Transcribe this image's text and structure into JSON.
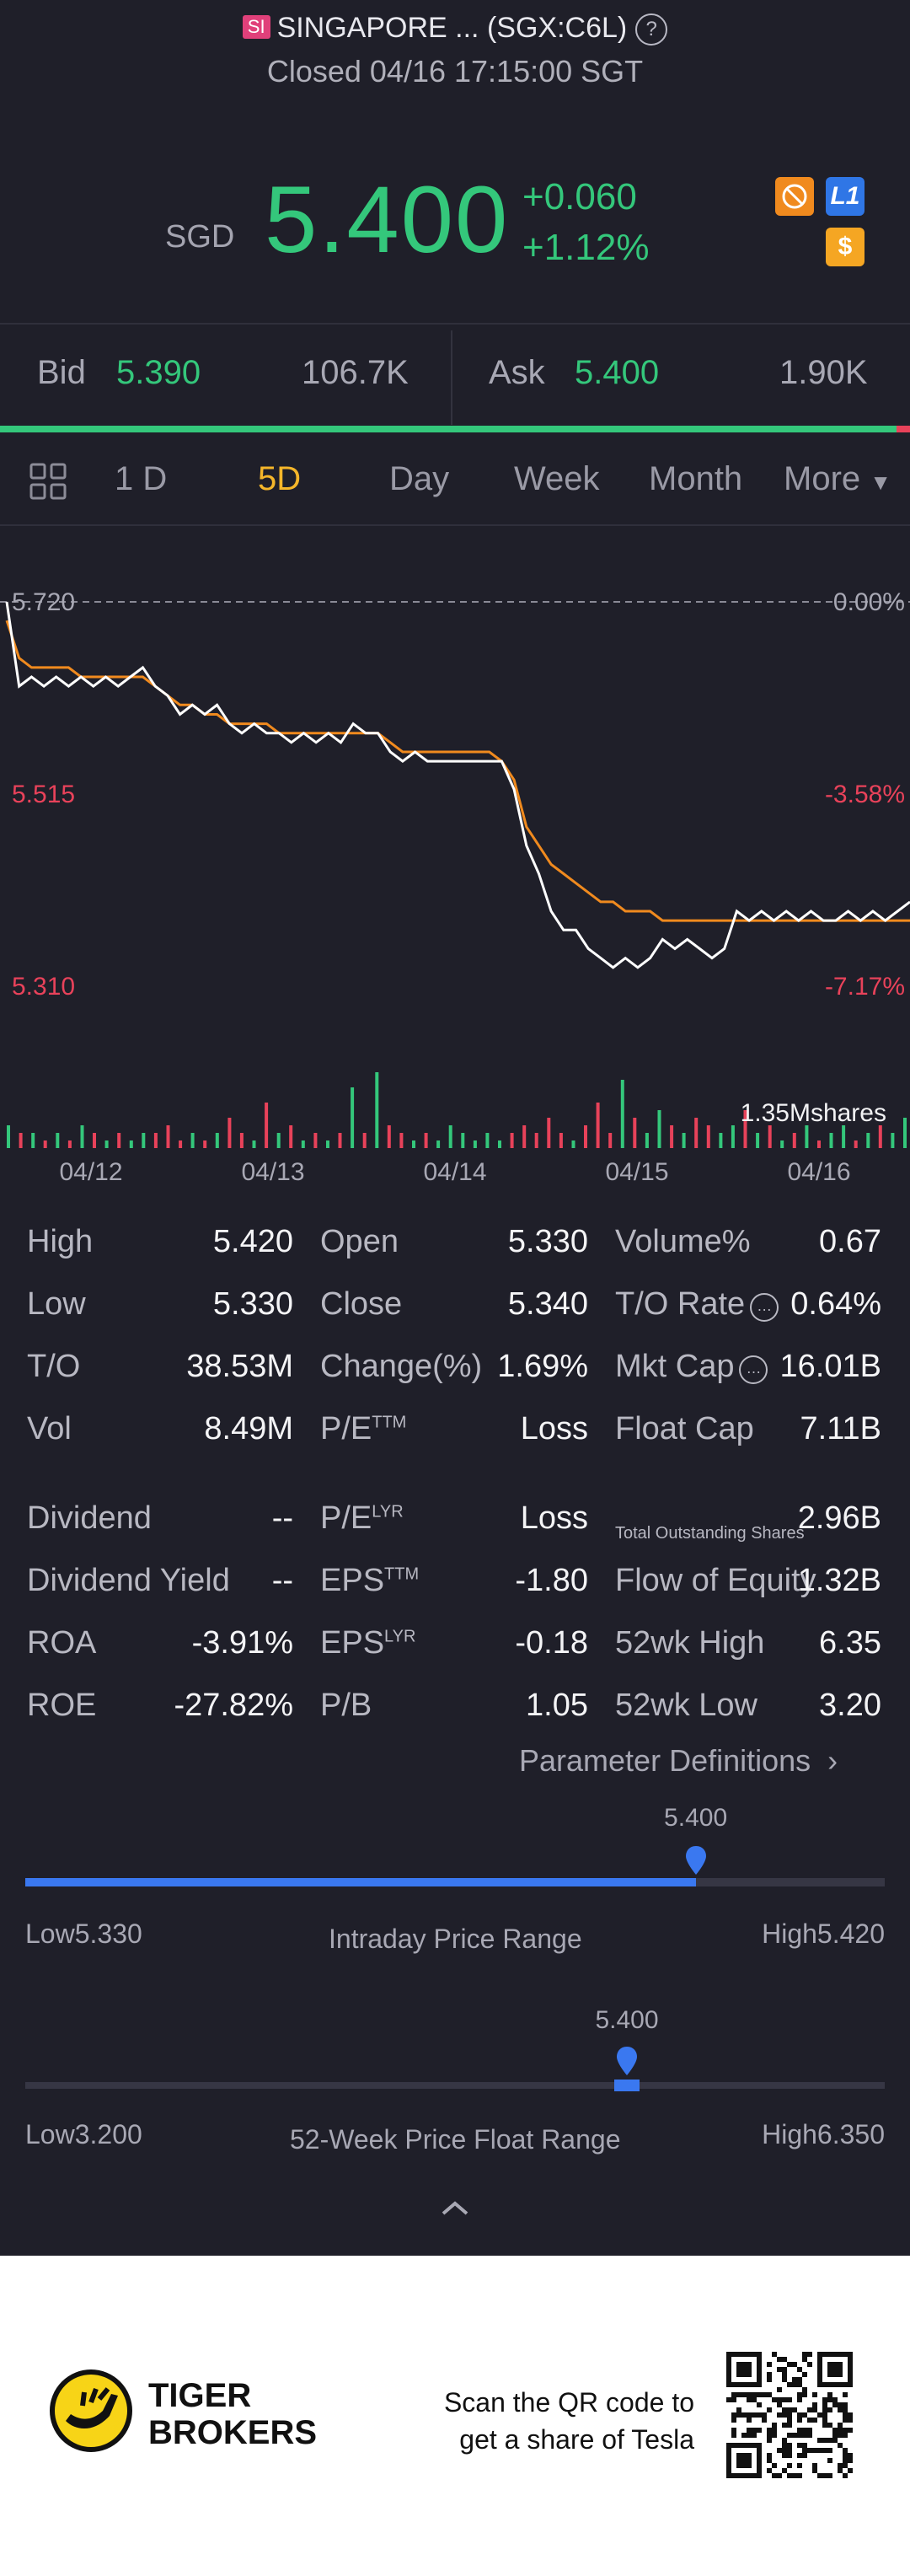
{
  "header": {
    "exchange_badge": "SI",
    "name": "SINGAPORE ... (SGX:C6L)",
    "help": "?",
    "status": "Closed 04/16 17:15:00 SGT"
  },
  "quote": {
    "currency": "SGD",
    "price": "5.400",
    "change": "+0.060",
    "change_pct": "+1.12%",
    "level_badge": "L1",
    "dollar_badge": "$"
  },
  "bidask": {
    "bid_label": "Bid",
    "bid_price": "5.390",
    "bid_size": "106.7K",
    "ask_label": "Ask",
    "ask_price": "5.400",
    "ask_size": "1.90K",
    "bid_fraction": 0.985
  },
  "tabs": {
    "items": [
      "1 D",
      "5D",
      "Day",
      "Week",
      "Month",
      "More"
    ],
    "active": "5D"
  },
  "chart_data": {
    "type": "line",
    "y_left_ticks": [
      "5.720",
      "5.515",
      "5.310"
    ],
    "y_right_ticks": [
      "0.00%",
      "-3.58%",
      "-7.17%"
    ],
    "x_ticks": [
      "04/12",
      "04/13",
      "04/14",
      "04/15",
      "04/16"
    ],
    "ylim": [
      5.31,
      5.72
    ],
    "volume_label": "1.35Mshares",
    "series": [
      {
        "values": [
          5.72,
          5.63,
          5.64,
          5.63,
          5.64,
          5.63,
          5.64,
          5.63,
          5.64,
          5.63,
          5.64,
          5.65,
          5.63,
          5.62,
          5.6,
          5.61,
          5.6,
          5.61,
          5.59,
          5.58,
          5.59,
          5.58,
          5.58,
          5.57,
          5.58,
          5.57,
          5.58,
          5.57,
          5.59,
          5.58,
          5.58,
          5.56,
          5.55,
          5.56,
          5.55,
          5.55,
          5.55,
          5.55,
          5.55,
          5.55,
          5.55,
          5.52,
          5.46,
          5.43,
          5.39,
          5.37,
          5.37,
          5.35,
          5.34,
          5.33,
          5.34,
          5.33,
          5.34,
          5.36,
          5.35,
          5.36,
          5.35,
          5.34,
          5.35,
          5.39,
          5.38,
          5.39,
          5.38,
          5.39,
          5.38,
          5.39,
          5.38,
          5.38,
          5.39,
          5.38,
          5.39,
          5.38,
          5.39,
          5.4
        ]
      },
      {
        "values": [
          5.7,
          5.66,
          5.65,
          5.65,
          5.65,
          5.65,
          5.64,
          5.64,
          5.64,
          5.64,
          5.64,
          5.64,
          5.63,
          5.62,
          5.61,
          5.61,
          5.6,
          5.6,
          5.59,
          5.59,
          5.59,
          5.59,
          5.58,
          5.58,
          5.58,
          5.58,
          5.58,
          5.58,
          5.58,
          5.58,
          5.58,
          5.57,
          5.56,
          5.56,
          5.56,
          5.56,
          5.56,
          5.56,
          5.56,
          5.56,
          5.55,
          5.53,
          5.48,
          5.46,
          5.44,
          5.43,
          5.42,
          5.41,
          5.4,
          5.4,
          5.39,
          5.39,
          5.39,
          5.38,
          5.38,
          5.38,
          5.38,
          5.38,
          5.38,
          5.38,
          5.38,
          5.38,
          5.38,
          5.38,
          5.38,
          5.38,
          5.38,
          5.38,
          5.38,
          5.38,
          5.38,
          5.38,
          5.38,
          5.38
        ]
      }
    ],
    "volume": [
      3,
      2,
      2,
      1,
      2,
      1,
      3,
      2,
      1,
      2,
      1,
      2,
      2,
      3,
      1,
      2,
      1,
      2,
      4,
      2,
      1,
      6,
      2,
      3,
      1,
      2,
      1,
      2,
      8,
      2,
      10,
      3,
      2,
      1,
      2,
      1,
      3,
      2,
      1,
      2,
      1,
      2,
      3,
      2,
      4,
      2,
      1,
      3,
      6,
      2,
      9,
      4,
      2,
      5,
      3,
      2,
      4,
      3,
      2,
      3,
      5,
      2,
      3,
      1,
      2,
      3,
      1,
      2,
      3,
      1,
      2,
      3,
      2,
      4
    ],
    "colors": {
      "price": "#ffffff",
      "avg": "#f08a1e",
      "up": "#34c77b",
      "down": "#e8425a"
    }
  },
  "stats": {
    "col1": [
      {
        "label": "High",
        "value": "5.420"
      },
      {
        "label": "Low",
        "value": "5.330"
      },
      {
        "label": "T/O",
        "value": "38.53M"
      },
      {
        "label": "Vol",
        "value": "8.49M"
      },
      {
        "label": "Dividend",
        "value": "--"
      },
      {
        "label": "Dividend Yield",
        "value": "--"
      },
      {
        "label": "ROA",
        "value": "-3.91%"
      },
      {
        "label": "ROE",
        "value": "-27.82%"
      }
    ],
    "col2": [
      {
        "label": "Open",
        "value": "5.330"
      },
      {
        "label": "Close",
        "value": "5.340"
      },
      {
        "label": "Change(%)",
        "value": "1.69%"
      },
      {
        "label": "P/E",
        "sup": "TTM",
        "value": "Loss"
      },
      {
        "label": "P/E",
        "sup": "LYR",
        "value": "Loss"
      },
      {
        "label": "EPS",
        "sup": "TTM",
        "value": "-1.80"
      },
      {
        "label": "EPS",
        "sup": "LYR",
        "value": "-0.18"
      },
      {
        "label": "P/B",
        "value": "1.05"
      }
    ],
    "col3": [
      {
        "label": "Volume%",
        "value": "0.67"
      },
      {
        "label": "T/O Rate",
        "value": "0.64%"
      },
      {
        "label": "Mkt Cap",
        "value": "16.01B"
      },
      {
        "label": "Float Cap",
        "value": "7.11B"
      },
      {
        "label": "Total Outstanding Shares",
        "value": "2.96B"
      },
      {
        "label": "Flow of Equity",
        "value": "1.32B"
      },
      {
        "label": "52wk High",
        "value": "6.35"
      },
      {
        "label": "52wk Low",
        "value": "3.20"
      }
    ],
    "param_link": "Parameter Definitions"
  },
  "ranges": {
    "intraday": {
      "current": "5.400",
      "low": "Low5.330",
      "high": "High5.420",
      "title": "Intraday Price Range",
      "fraction": 0.78
    },
    "week52": {
      "current": "5.400",
      "low": "Low3.200",
      "high": "High6.350",
      "title": "52-Week Price Float Range",
      "fraction": 0.7
    }
  },
  "footer": {
    "brand_line1": "TIGER",
    "brand_line2": "BROKERS",
    "qr_line1": "Scan the QR code to",
    "qr_line2": "get a share of Tesla"
  }
}
